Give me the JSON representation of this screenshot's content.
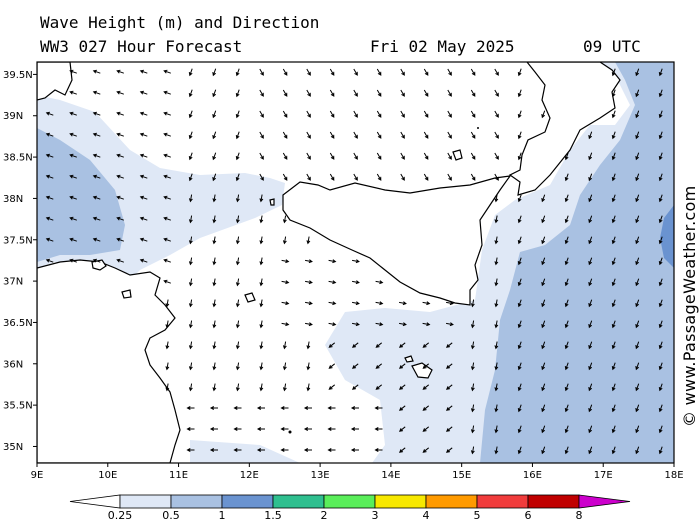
{
  "header": {
    "title_line1": "Wave Height (m) and Direction",
    "title_line2": "WW3 027 Hour Forecast",
    "date": "Fri 02 May 2025",
    "time": "09 UTC"
  },
  "credit": "© www.PassageWeather.com",
  "map": {
    "lon_range": [
      9,
      18
    ],
    "lat_range": [
      34.8,
      39.65
    ],
    "lon_ticks": [
      "9E",
      "10E",
      "11E",
      "12E",
      "13E",
      "14E",
      "15E",
      "16E",
      "17E",
      "18E"
    ],
    "lat_ticks": [
      "39.5N",
      "39N",
      "38.5N",
      "38N",
      "37.5N",
      "37N",
      "36.5N",
      "36N",
      "35.5N",
      "35N"
    ],
    "colors": {
      "land": "#ffffff",
      "coast": "#000000",
      "c025": "#dfe8f6",
      "c05": "#a9c1e2",
      "c1": "#6a93d0"
    }
  },
  "colorbar": {
    "labels": [
      "0.25",
      "0.5",
      "1",
      "1.5",
      "2",
      "3",
      "4",
      "5",
      "6",
      "8"
    ],
    "colors": [
      "#ffffff",
      "#dfe8f6",
      "#a9c1e2",
      "#6a93d0",
      "#2fbf8f",
      "#5aee5a",
      "#f7e800",
      "#ff9a00",
      "#f03c3c",
      "#c00000",
      "#cc00cc"
    ]
  }
}
